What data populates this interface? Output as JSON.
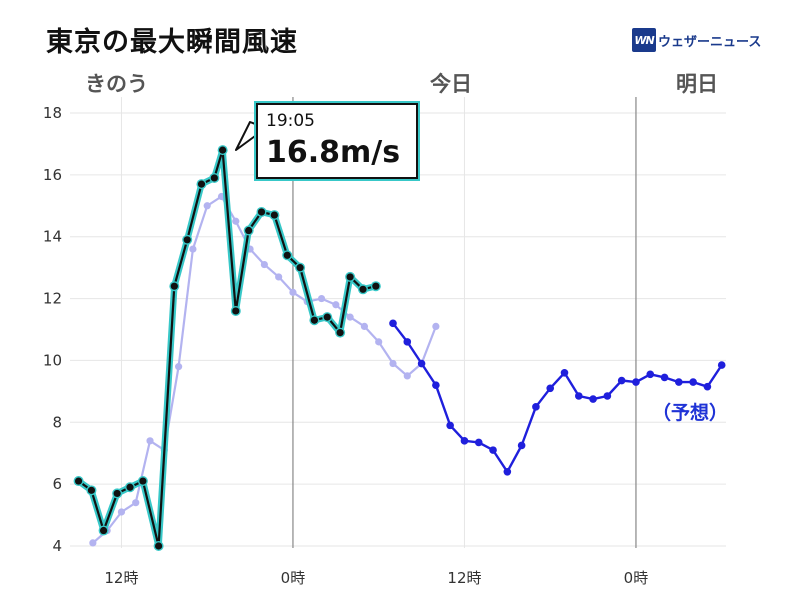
{
  "title": "東京の最大瞬間風速",
  "logo": {
    "mark": "WN",
    "text": "ウェザーニュース"
  },
  "days": {
    "yesterday": "きのう",
    "today": "今日",
    "tomorrow": "明日"
  },
  "forecast_label": "（予想）",
  "callout": {
    "time": "19:05",
    "value": "16.8m/s"
  },
  "colors": {
    "observed": "#111111",
    "observed_glow": "#38c8c8",
    "comparison": "#b3b3f0",
    "forecast": "#1f1fdc",
    "grid": "#e6e6e6",
    "day_line": "#888888"
  },
  "chart_data": {
    "type": "line",
    "title": "東京の最大瞬間風速",
    "xlabel": "",
    "ylabel": "",
    "ylim": [
      4,
      18
    ],
    "y_ticks": [
      4,
      6,
      8,
      10,
      12,
      14,
      16,
      18
    ],
    "x_ticks": [
      {
        "x": 12,
        "label": "12時"
      },
      {
        "x": 24,
        "label": "0時"
      },
      {
        "x": 36,
        "label": "12時"
      },
      {
        "x": 48,
        "label": "0時"
      }
    ],
    "day_boundaries": [
      24,
      48
    ],
    "grid": true,
    "series": [
      {
        "role": "comparison",
        "points": [
          [
            10,
            4.1
          ],
          [
            11,
            4.5
          ],
          [
            12,
            5.1
          ],
          [
            13,
            5.4
          ],
          [
            14,
            7.4
          ],
          [
            15,
            7.1
          ],
          [
            16,
            9.8
          ],
          [
            17,
            13.6
          ],
          [
            18,
            15.0
          ],
          [
            19,
            15.3
          ],
          [
            20,
            14.5
          ],
          [
            21,
            13.6
          ],
          [
            22,
            13.1
          ],
          [
            23,
            12.7
          ],
          [
            24,
            12.2
          ],
          [
            25,
            11.9
          ],
          [
            26,
            12.0
          ],
          [
            27,
            11.8
          ],
          [
            28,
            11.4
          ],
          [
            29,
            11.1
          ],
          [
            30,
            10.6
          ],
          [
            31,
            9.9
          ],
          [
            32,
            9.5
          ],
          [
            33,
            9.9
          ],
          [
            34,
            11.1
          ]
        ]
      },
      {
        "role": "observed",
        "points": [
          [
            9,
            6.1
          ],
          [
            9.9,
            5.8
          ],
          [
            10.75,
            4.5
          ],
          [
            11.7,
            5.7
          ],
          [
            12.6,
            5.9
          ],
          [
            13.5,
            6.1
          ],
          [
            14.6,
            4.0
          ],
          [
            15.7,
            12.4
          ],
          [
            16.6,
            13.9
          ],
          [
            17.6,
            15.7
          ],
          [
            18.5,
            15.9
          ],
          [
            19.08,
            16.8
          ],
          [
            20.0,
            11.6
          ],
          [
            20.9,
            14.2
          ],
          [
            21.8,
            14.8
          ],
          [
            22.7,
            14.7
          ],
          [
            23.6,
            13.4
          ],
          [
            24.5,
            13.0
          ],
          [
            25.5,
            11.3
          ],
          [
            26.4,
            11.4
          ],
          [
            27.3,
            10.9
          ],
          [
            28.0,
            12.7
          ],
          [
            28.9,
            12.3
          ],
          [
            29.8,
            12.4
          ]
        ]
      },
      {
        "role": "forecast",
        "points": [
          [
            31,
            11.2
          ],
          [
            32,
            10.6
          ],
          [
            33,
            9.9
          ],
          [
            34,
            9.2
          ],
          [
            35,
            7.9
          ],
          [
            36,
            7.4
          ],
          [
            37,
            7.35
          ],
          [
            38,
            7.1
          ],
          [
            39,
            6.4
          ],
          [
            40,
            7.25
          ],
          [
            41,
            8.5
          ],
          [
            42,
            9.1
          ],
          [
            43,
            9.6
          ],
          [
            44,
            8.85
          ],
          [
            45,
            8.75
          ],
          [
            46,
            8.85
          ],
          [
            47,
            9.35
          ],
          [
            48,
            9.3
          ],
          [
            49,
            9.55
          ],
          [
            50,
            9.45
          ],
          [
            51,
            9.3
          ],
          [
            52,
            9.3
          ],
          [
            53,
            9.15
          ],
          [
            54,
            9.85
          ]
        ]
      }
    ]
  }
}
